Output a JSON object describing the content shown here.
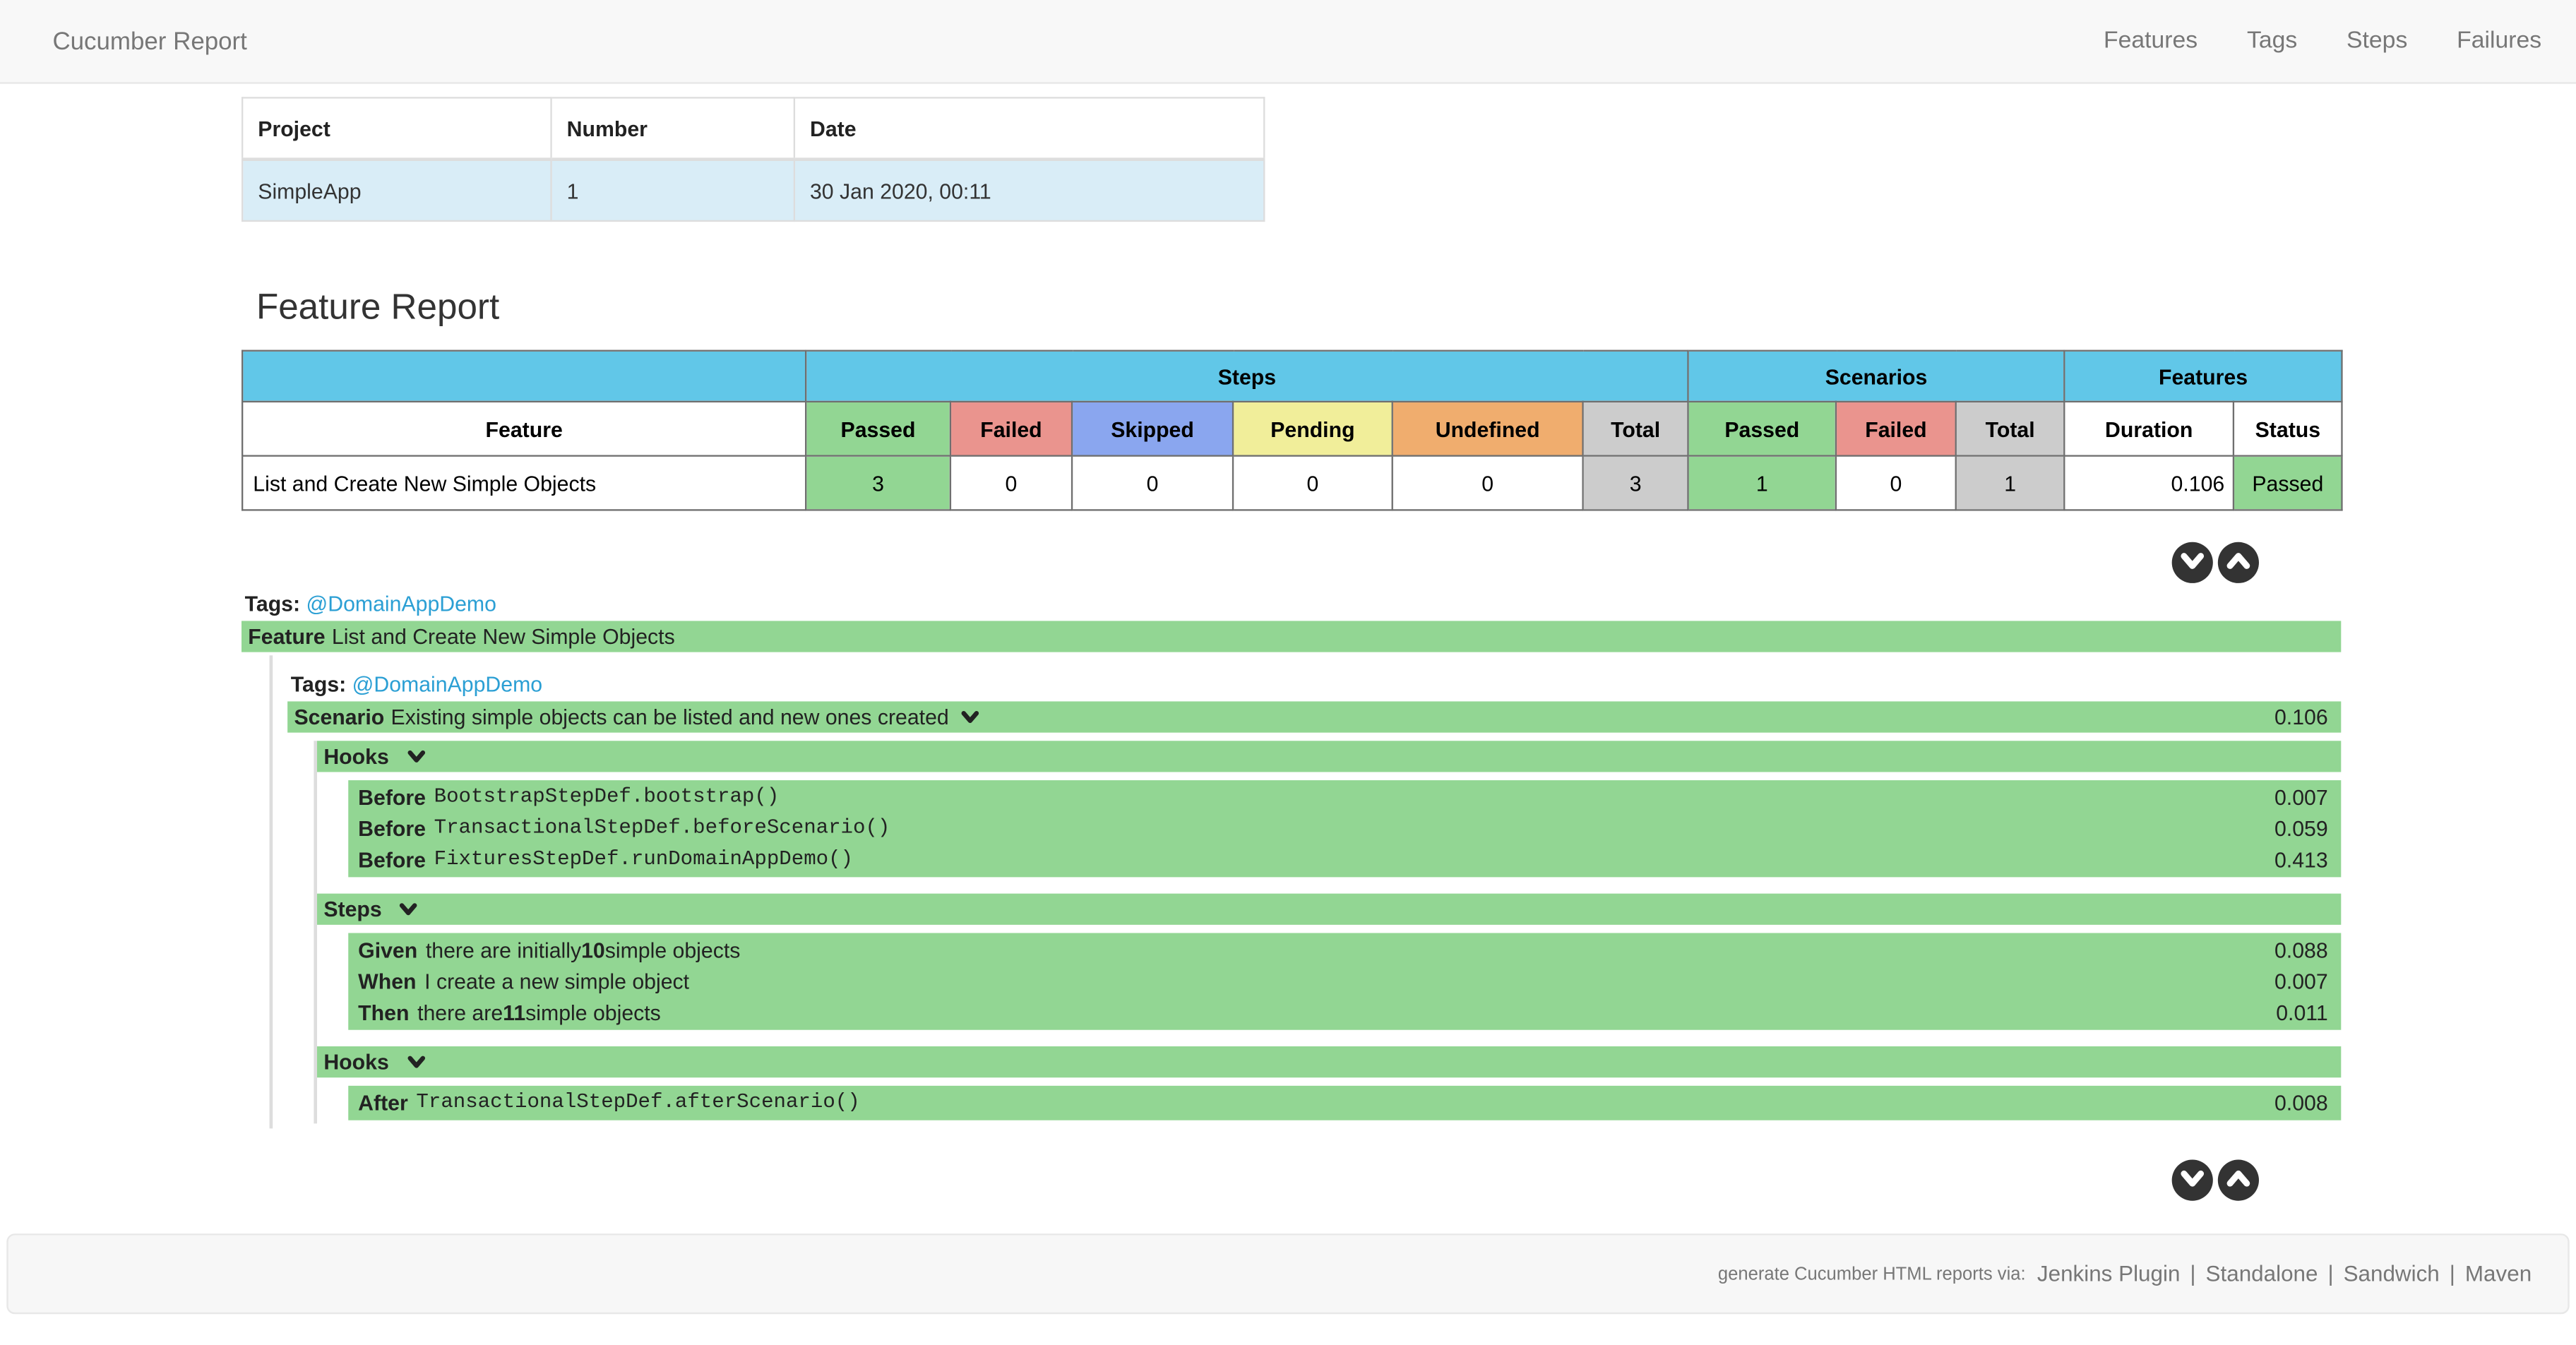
{
  "colors": {
    "accent_blue": "#61c7e8",
    "passed_green": "#92d693",
    "failed_red": "#ea948e",
    "skipped_blue": "#8aa6ef",
    "pending_yellow": "#f1ee9a",
    "undefined_orange": "#f0ad6e",
    "total_gray": "#cccccc",
    "info_row_blue": "#d9edf7",
    "link_blue": "#2b9fd4",
    "button_dark": "#333333"
  },
  "navbar": {
    "brand": "Cucumber Report",
    "links": [
      "Features",
      "Tags",
      "Steps",
      "Failures"
    ]
  },
  "project_table": {
    "headers": [
      "Project",
      "Number",
      "Date"
    ],
    "rows": [
      [
        "SimpleApp",
        "1",
        "30 Jan 2020, 00:11"
      ]
    ]
  },
  "feature_report": {
    "title": "Feature Report",
    "group_headers": [
      {
        "label": "",
        "span": 1
      },
      {
        "label": "Steps",
        "span": 6
      },
      {
        "label": "Scenarios",
        "span": 3
      },
      {
        "label": "Features",
        "span": 2
      }
    ],
    "columns": [
      "Feature",
      "Passed",
      "Failed",
      "Skipped",
      "Pending",
      "Undefined",
      "Total",
      "Passed",
      "Failed",
      "Total",
      "Duration",
      "Status"
    ],
    "column_styles": [
      "plainwhite",
      "passed",
      "failed",
      "skipped",
      "pending",
      "undefined",
      "total",
      "passed",
      "failed",
      "total",
      "plainwhite",
      "plainwhite"
    ],
    "rows": [
      {
        "cells": [
          "List and Create New Simple Objects",
          "3",
          "0",
          "0",
          "0",
          "0",
          "3",
          "1",
          "0",
          "1",
          "0.106",
          "Passed"
        ],
        "cell_styles": [
          "name",
          "passed",
          "plain",
          "plain",
          "plain",
          "plain",
          "total",
          "passed",
          "plain",
          "total",
          "duration",
          "status-passed"
        ]
      }
    ]
  },
  "feature_section": {
    "tags_label": "Tags:",
    "tag": "@DomainAppDemo",
    "keyword": "Feature",
    "name": "List and Create New Simple Objects",
    "scenario": {
      "tags_label": "Tags:",
      "tag": "@DomainAppDemo",
      "keyword": "Scenario",
      "name": "Existing simple objects can be listed and new ones created",
      "duration": "0.106",
      "groups": [
        {
          "label": "Hooks",
          "rows": [
            {
              "keyword": "Before",
              "mono": "BootstrapStepDef.bootstrap()",
              "duration": "0.007"
            },
            {
              "keyword": "Before",
              "mono": "TransactionalStepDef.beforeScenario()",
              "duration": "0.059"
            },
            {
              "keyword": "Before",
              "mono": "FixturesStepDef.runDomainAppDemo()",
              "duration": "0.413"
            }
          ]
        },
        {
          "label": "Steps",
          "rows": [
            {
              "keyword": "Given",
              "parts": [
                [
                  "there are initially ",
                  0
                ],
                [
                  "10",
                  1
                ],
                [
                  " simple objects",
                  0
                ]
              ],
              "duration": "0.088"
            },
            {
              "keyword": "When",
              "parts": [
                [
                  "I create a new simple object",
                  0
                ]
              ],
              "duration": "0.007"
            },
            {
              "keyword": "Then",
              "parts": [
                [
                  "there are ",
                  0
                ],
                [
                  "11",
                  1
                ],
                [
                  " simple objects",
                  0
                ]
              ],
              "duration": "0.011"
            }
          ]
        },
        {
          "label": "Hooks",
          "rows": [
            {
              "keyword": "After",
              "mono": "TransactionalStepDef.afterScenario()",
              "duration": "0.008"
            }
          ]
        }
      ]
    }
  },
  "footer": {
    "prefix": "generate Cucumber HTML reports via:",
    "links": [
      "Jenkins Plugin",
      "Standalone",
      "Sandwich",
      "Maven"
    ]
  }
}
